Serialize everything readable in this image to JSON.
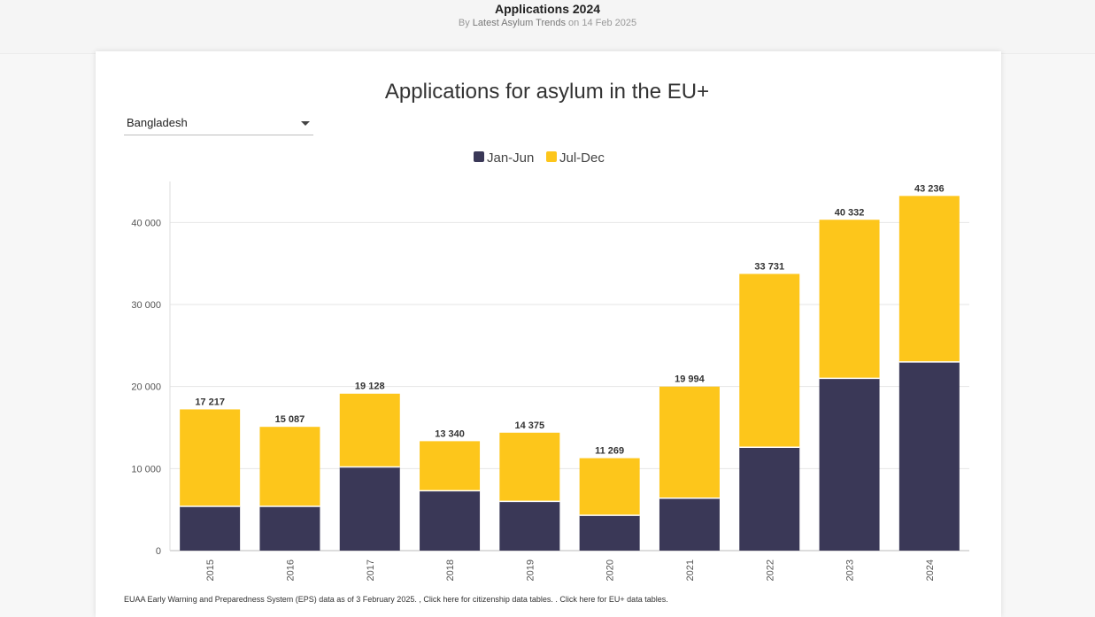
{
  "header": {
    "title": "Applications 2024",
    "subtitle_prefix": "By",
    "author": "Latest Asylum Trends",
    "subtitle_suffix": "on 14 Feb 2025"
  },
  "filter": {
    "selected": "Bangladesh"
  },
  "footer": {
    "note": "EUAA Early Warning and Preparedness System (EPS) data as of 3 February 2025. , Click here for citizenship data tables. . Click here for EU+ data tables."
  },
  "colors": {
    "jan_jun": "#3a3857",
    "jul_dec": "#fdc61b",
    "grid": "#e6e6e6",
    "axis_text": "#555555",
    "label_text": "#333333"
  },
  "chart_data": {
    "type": "bar",
    "stacked": true,
    "title": "Applications for asylum in the EU+",
    "xlabel": "",
    "ylabel": "",
    "ylim": [
      0,
      45000
    ],
    "yticks": [
      0,
      10000,
      20000,
      30000,
      40000
    ],
    "ytick_labels": [
      "0",
      "10 000",
      "20 000",
      "30 000",
      "40 000"
    ],
    "grid": true,
    "legend_position": "top-center",
    "categories": [
      "2015",
      "2016",
      "2017",
      "2018",
      "2019",
      "2020",
      "2021",
      "2022",
      "2023",
      "2024"
    ],
    "series": [
      {
        "name": "Jan-Jun",
        "values": [
          5400,
          5400,
          10200,
          7300,
          6000,
          4300,
          6400,
          12600,
          21000,
          23000
        ]
      },
      {
        "name": "Jul-Dec",
        "values": [
          11817,
          9687,
          8928,
          6040,
          8375,
          6969,
          13594,
          21131,
          19332,
          20236
        ]
      }
    ],
    "totals": [
      17217,
      15087,
      19128,
      13340,
      14375,
      11269,
      19994,
      33731,
      40332,
      43236
    ],
    "total_labels": [
      "17 217",
      "15 087",
      "19 128",
      "13 340",
      "14 375",
      "11 269",
      "19 994",
      "33 731",
      "40 332",
      "43 236"
    ]
  }
}
